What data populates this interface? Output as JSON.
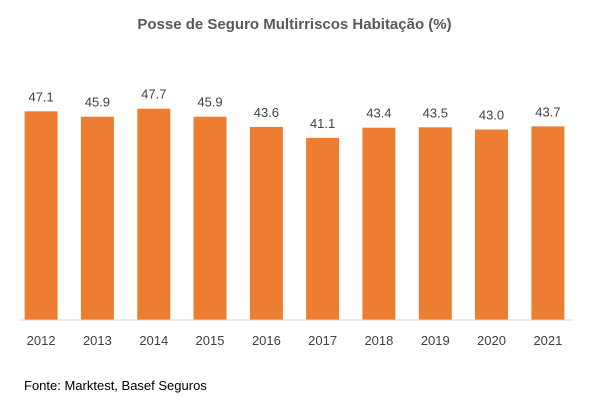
{
  "chart_data": {
    "type": "bar",
    "title": "Posse de Seguro Multirriscos Habitação (%)",
    "categories": [
      "2012",
      "2013",
      "2014",
      "2015",
      "2016",
      "2017",
      "2018",
      "2019",
      "2020",
      "2021"
    ],
    "values": [
      47.1,
      45.9,
      47.7,
      45.9,
      43.6,
      41.1,
      43.4,
      43.5,
      43.0,
      43.7
    ],
    "data_labels": [
      "47.1",
      "45.9",
      "47.7",
      "45.9",
      "43.6",
      "41.1",
      "43.4",
      "43.5",
      "43.0",
      "43.7"
    ],
    "xlabel": "",
    "ylabel": "",
    "ylim": [
      0,
      50
    ],
    "grid": false,
    "legend": "none",
    "bar_color": "#ED7D31"
  },
  "source": "Fonte: Marktest, Basef Seguros"
}
